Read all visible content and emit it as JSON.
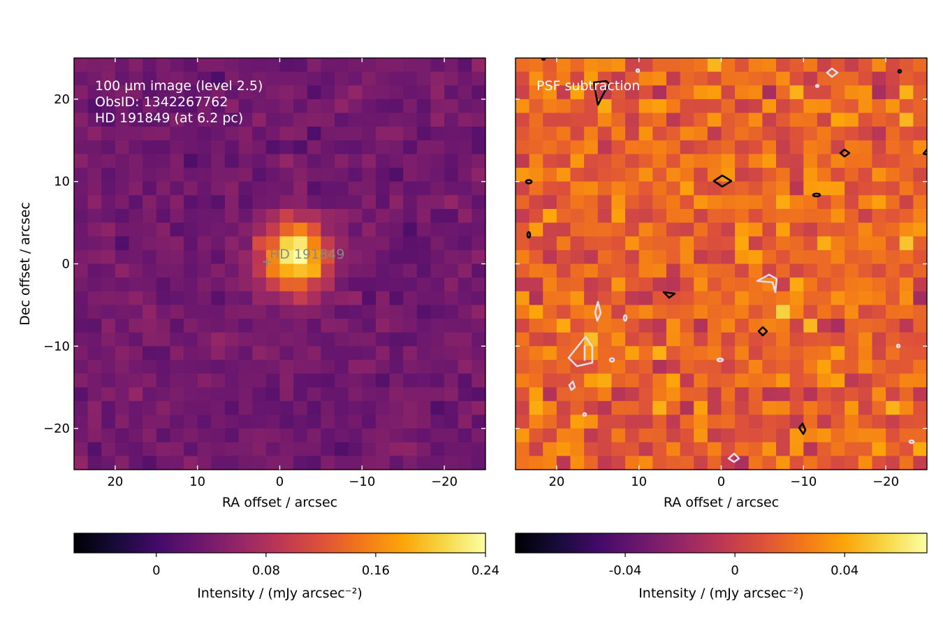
{
  "chart_data": [
    {
      "type": "heatmap",
      "colormap": "inferno",
      "xlabel": "RA offset / arcsec",
      "ylabel": "Dec offset / arcsec",
      "xlim": [
        25,
        -25
      ],
      "ylim": [
        -25,
        25
      ],
      "xticks": [
        20,
        10,
        0,
        -10,
        -20
      ],
      "yticks": [
        20,
        10,
        0,
        -10,
        -20
      ],
      "xtick_labels": [
        "20",
        "10",
        "0",
        "−10",
        "−20"
      ],
      "ytick_labels": [
        "20",
        "10",
        "0",
        "−10",
        "−20"
      ],
      "annotation_lines": [
        "100 µm image (level 2.5)",
        "ObsID: 1342267762",
        "HD 191849 (at 6.2 pc)"
      ],
      "star_marker": {
        "label": "HD 191849",
        "ra": 1.6,
        "dec": 0.4,
        "symbol": "+"
      },
      "grid": "30x30 pixels",
      "source_peak": {
        "ra": -2,
        "dec": 1,
        "value": 0.24
      },
      "colorbar": {
        "label": "Intensity / (mJy arcsec⁻²)",
        "vmin": -0.06,
        "vmax": 0.24,
        "ticks": [
          0,
          0.08,
          0.16,
          0.24
        ],
        "tick_labels": [
          "0",
          "0.08",
          "0.16",
          "0.24"
        ]
      }
    },
    {
      "type": "heatmap",
      "colormap": "inferno",
      "xlabel": "RA offset / arcsec",
      "xlim": [
        25,
        -25
      ],
      "ylim": [
        -25,
        25
      ],
      "xticks": [
        20,
        10,
        0,
        -10,
        -20
      ],
      "xtick_labels": [
        "20",
        "10",
        "0",
        "−10",
        "−20"
      ],
      "annotation_lines": [
        "PSF subtraction"
      ],
      "grid": "30x30 pixels",
      "contours": "black (positive) and white (negative) significance contours",
      "colorbar": {
        "label": "Intensity / (mJy arcsec⁻²)",
        "vmin": -0.08,
        "vmax": 0.07,
        "ticks": [
          -0.04,
          0,
          0.04
        ],
        "tick_labels": [
          "-0.04",
          "0",
          "0.04"
        ]
      }
    }
  ]
}
